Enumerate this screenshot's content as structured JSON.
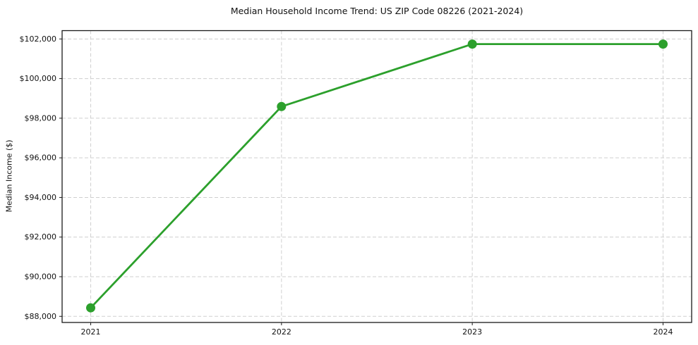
{
  "chart_data": {
    "type": "line",
    "title": "Median Household Income Trend: US ZIP Code 08226 (2021-2024)",
    "xlabel": "",
    "ylabel": "Median Income ($)",
    "x": [
      2021,
      2022,
      2023,
      2024
    ],
    "xtick_labels": [
      "2021",
      "2022",
      "2023",
      "2024"
    ],
    "values": [
      88430,
      98590,
      101740,
      101740
    ],
    "yticks": [
      88000,
      90000,
      92000,
      94000,
      96000,
      98000,
      100000,
      102000
    ],
    "ytick_labels": [
      "$88,000",
      "$90,000",
      "$92,000",
      "$94,000",
      "$96,000",
      "$98,000",
      "$100,000",
      "$102,000"
    ],
    "ylim": [
      87690,
      102420
    ],
    "xlim": [
      2020.85,
      2024.15
    ],
    "grid": true,
    "grid_style": "dashed",
    "legend": "none",
    "line_color": "#2ca02c",
    "marker": "circle",
    "grid_color": "#cfcfcf",
    "spine_color": "#1a1a1a",
    "text_color": "#111111",
    "background_color": "#ffffff"
  }
}
